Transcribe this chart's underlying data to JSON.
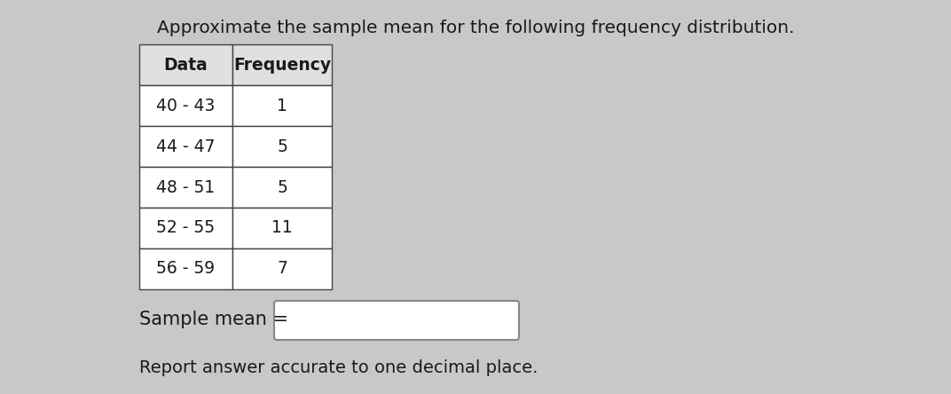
{
  "title": "Approximate the sample mean for the following frequency distribution.",
  "col1_header": "Data",
  "col2_header": "Frequency",
  "rows": [
    [
      "40 - 43",
      "1"
    ],
    [
      "44 - 47",
      "5"
    ],
    [
      "48 - 51",
      "5"
    ],
    [
      "52 - 55",
      "11"
    ],
    [
      "56 - 59",
      "7"
    ]
  ],
  "sample_mean_label": "Sample mean =",
  "report_text": "Report answer accurate to one decimal place.",
  "bg_color": "#c8c8c8",
  "table_bg": "#ffffff",
  "header_bg": "#e0e0e0",
  "border_color": "#444444",
  "text_color": "#1a1a1a",
  "title_fontsize": 14.5,
  "body_fontsize": 13.5,
  "label_fontsize": 15,
  "report_fontsize": 14,
  "fig_width": 10.72,
  "fig_height": 4.44,
  "dpi": 100
}
